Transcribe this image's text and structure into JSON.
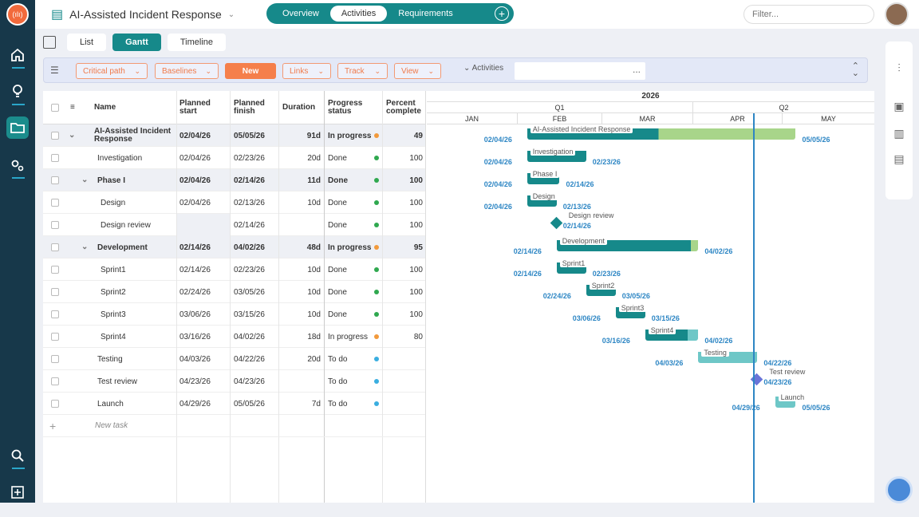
{
  "app": {
    "title": "AI-Assisted Incident Response",
    "logo": "(ılı)"
  },
  "tabs": [
    {
      "label": "Overview"
    },
    {
      "label": "Activities"
    },
    {
      "label": "Requirements"
    }
  ],
  "filter_placeholder": "Filter...",
  "views": [
    "List",
    "Gantt",
    "Timeline"
  ],
  "toolbar": {
    "critical_path": "Critical path",
    "baselines": "Baselines",
    "new": "New",
    "links": "Links",
    "track": "Track",
    "view": "View",
    "activities": "Activities",
    "activities_value": "..."
  },
  "columns": [
    "Name",
    "Planned start",
    "Planned finish",
    "Duration",
    "Progress status",
    "Percent complete"
  ],
  "rows": [
    {
      "name": "AI-Assisted Incident Response",
      "start": "02/04/26",
      "finish": "05/05/26",
      "duration": "91d",
      "status": "In progress",
      "pct": "49",
      "level": 0,
      "summary": true,
      "color": "#f29a3c"
    },
    {
      "name": "Investigation",
      "start": "02/04/26",
      "finish": "02/23/26",
      "duration": "20d",
      "status": "Done",
      "pct": "100",
      "level": 1,
      "summary": false,
      "color": "#2fa84f"
    },
    {
      "name": "Phase I",
      "start": "02/04/26",
      "finish": "02/14/26",
      "duration": "11d",
      "status": "Done",
      "pct": "100",
      "level": 1,
      "summary": true,
      "color": "#2fa84f"
    },
    {
      "name": "Design",
      "start": "02/04/26",
      "finish": "02/13/26",
      "duration": "10d",
      "status": "Done",
      "pct": "100",
      "level": 2,
      "summary": false,
      "color": "#2fa84f"
    },
    {
      "name": "Design review",
      "start": "",
      "finish": "02/14/26",
      "duration": "",
      "status": "Done",
      "pct": "100",
      "level": 2,
      "summary": false,
      "color": "#2fa84f"
    },
    {
      "name": "Development",
      "start": "02/14/26",
      "finish": "04/02/26",
      "duration": "48d",
      "status": "In progress",
      "pct": "95",
      "level": 1,
      "summary": true,
      "color": "#f29a3c"
    },
    {
      "name": "Sprint1",
      "start": "02/14/26",
      "finish": "02/23/26",
      "duration": "10d",
      "status": "Done",
      "pct": "100",
      "level": 2,
      "summary": false,
      "color": "#2fa84f"
    },
    {
      "name": "Sprint2",
      "start": "02/24/26",
      "finish": "03/05/26",
      "duration": "10d",
      "status": "Done",
      "pct": "100",
      "level": 2,
      "summary": false,
      "color": "#2fa84f"
    },
    {
      "name": "Sprint3",
      "start": "03/06/26",
      "finish": "03/15/26",
      "duration": "10d",
      "status": "Done",
      "pct": "100",
      "level": 2,
      "summary": false,
      "color": "#2fa84f"
    },
    {
      "name": "Sprint4",
      "start": "03/16/26",
      "finish": "04/02/26",
      "duration": "18d",
      "status": "In progress",
      "pct": "80",
      "level": 2,
      "summary": false,
      "color": "#f29a3c"
    },
    {
      "name": "Testing",
      "start": "04/03/26",
      "finish": "04/22/26",
      "duration": "20d",
      "status": "To do",
      "pct": "",
      "level": 1,
      "summary": false,
      "color": "#3aaee0"
    },
    {
      "name": "Test review",
      "start": "04/23/26",
      "finish": "04/23/26",
      "duration": "",
      "status": "To do",
      "pct": "",
      "level": 1,
      "summary": false,
      "color": "#3aaee0"
    },
    {
      "name": "Launch",
      "start": "04/29/26",
      "finish": "05/05/26",
      "duration": "7d",
      "status": "To do",
      "pct": "",
      "level": 1,
      "summary": false,
      "color": "#3aaee0"
    }
  ],
  "new_task": "New task",
  "timeline": {
    "year": "2026",
    "quarters": [
      "Q1",
      "Q2"
    ],
    "months": [
      "JAN",
      "FEB",
      "MAR",
      "APR",
      "MAY"
    ]
  },
  "gantt_tasks": [
    {
      "label": "AI-Assisted Incident Response",
      "start": "02/04/26",
      "finish": "05/05/26",
      "pct": 49,
      "type": "summary"
    },
    {
      "label": "Investigation",
      "start": "02/04/26",
      "finish": "02/23/26",
      "pct": 100,
      "type": "task"
    },
    {
      "label": "Phase I",
      "start": "02/04/26",
      "finish": "02/14/26",
      "pct": 100,
      "type": "task"
    },
    {
      "label": "Design",
      "start": "02/04/26",
      "finish": "02/13/26",
      "pct": 100,
      "type": "task"
    },
    {
      "label": "Design review",
      "start": "02/14/26",
      "finish": "02/14/26",
      "pct": 100,
      "type": "milestone"
    },
    {
      "label": "Development",
      "start": "02/14/26",
      "finish": "04/02/26",
      "pct": 95,
      "type": "summary"
    },
    {
      "label": "Sprint1",
      "start": "02/14/26",
      "finish": "02/23/26",
      "pct": 100,
      "type": "task"
    },
    {
      "label": "Sprint2",
      "start": "02/24/26",
      "finish": "03/05/26",
      "pct": 100,
      "type": "task"
    },
    {
      "label": "Sprint3",
      "start": "03/06/26",
      "finish": "03/15/26",
      "pct": 100,
      "type": "task"
    },
    {
      "label": "Sprint4",
      "start": "03/16/26",
      "finish": "04/02/26",
      "pct": 80,
      "type": "task"
    },
    {
      "label": "Testing",
      "start": "04/03/26",
      "finish": "04/22/26",
      "pct": 0,
      "type": "task"
    },
    {
      "label": "Test review",
      "start": "04/23/26",
      "finish": "04/23/26",
      "pct": 0,
      "type": "milestone"
    },
    {
      "label": "Launch",
      "start": "04/29/26",
      "finish": "05/05/26",
      "pct": 0,
      "type": "task"
    }
  ],
  "today": "04/23/26",
  "colors": {
    "teal": "#16898a",
    "orange": "#f57f4b",
    "green": "#a8d58a",
    "light_teal": "#6ec7c7",
    "today": "#2d86c4"
  }
}
